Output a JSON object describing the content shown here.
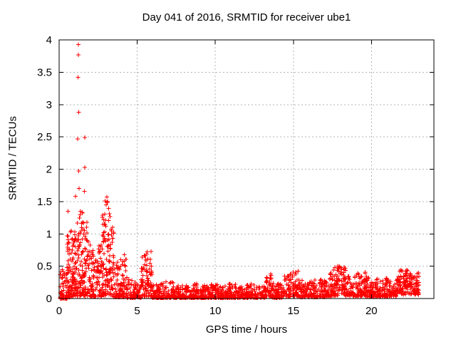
{
  "window": {
    "title": "Day 041 of 2016, SRMTID for receiver ube1"
  },
  "chart_data": {
    "type": "scatter",
    "title": "Day 041 of 2016, SRMTID for receiver ube1",
    "xlabel": "GPS time / hours",
    "ylabel": "SRMTID / TECUs",
    "xlim": [
      0,
      24
    ],
    "ylim": [
      0,
      4
    ],
    "xticks": [
      0,
      5,
      10,
      15,
      20
    ],
    "yticks": [
      0,
      0.5,
      1,
      1.5,
      2,
      2.5,
      3,
      3.5,
      4
    ],
    "grid": true,
    "legend_position": "none",
    "marker": {
      "shape": "plus",
      "size": 7,
      "color": "#ff0000"
    },
    "colors": {
      "marker": "#ff0000",
      "axis": "#000000",
      "grid": "#b4b4b4",
      "background": "#ffffff",
      "text": "#000000"
    },
    "series": [
      {
        "name": "SRMTID",
        "outlier_points": [
          [
            1.23,
            3.93
          ],
          [
            1.23,
            3.77
          ],
          [
            1.2,
            3.42
          ],
          [
            1.25,
            2.88
          ],
          [
            1.19,
            2.47
          ],
          [
            1.64,
            2.49
          ],
          [
            1.64,
            2.03
          ],
          [
            1.26,
            1.97
          ],
          [
            1.27,
            1.7
          ],
          [
            1.61,
            1.66
          ],
          [
            1.05,
            1.58
          ],
          [
            3.05,
            1.57
          ],
          [
            3.1,
            1.5
          ],
          [
            0.57,
            1.35
          ],
          [
            1.38,
            1.35
          ],
          [
            3.0,
            1.45
          ]
        ],
        "cloud_segments": [
          {
            "x0": 0.05,
            "x1": 0.5,
            "n": 60,
            "vmin": 0.0,
            "vmax": 0.45,
            "bias": 2.4
          },
          {
            "x0": 0.5,
            "x1": 0.9,
            "n": 85,
            "vmin": 0.02,
            "vmax": 1.33,
            "bias": 1.8
          },
          {
            "x0": 0.9,
            "x1": 1.9,
            "n": 170,
            "vmin": 0.04,
            "vmax": 1.36,
            "bias": 1.7
          },
          {
            "x0": 1.9,
            "x1": 2.75,
            "n": 110,
            "vmin": 0.03,
            "vmax": 0.95,
            "bias": 1.8
          },
          {
            "x0": 2.75,
            "x1": 3.5,
            "n": 130,
            "vmin": 0.05,
            "vmax": 1.55,
            "bias": 1.7
          },
          {
            "x0": 3.5,
            "x1": 4.3,
            "n": 90,
            "vmin": 0.02,
            "vmax": 0.7,
            "bias": 2.0
          },
          {
            "x0": 4.3,
            "x1": 5.25,
            "n": 80,
            "vmin": 0.01,
            "vmax": 0.33,
            "bias": 1.8
          },
          {
            "x0": 5.25,
            "x1": 5.95,
            "n": 90,
            "vmin": 0.03,
            "vmax": 0.78,
            "bias": 1.6
          },
          {
            "x0": 5.95,
            "x1": 9.0,
            "n": 280,
            "vmin": 0.01,
            "vmax": 0.27,
            "bias": 2.2
          },
          {
            "x0": 9.0,
            "x1": 13.2,
            "n": 380,
            "vmin": 0.01,
            "vmax": 0.24,
            "bias": 2.0
          },
          {
            "x0": 13.2,
            "x1": 13.65,
            "n": 50,
            "vmin": 0.03,
            "vmax": 0.42,
            "bias": 1.6
          },
          {
            "x0": 13.65,
            "x1": 14.4,
            "n": 70,
            "vmin": 0.01,
            "vmax": 0.25,
            "bias": 2.0
          },
          {
            "x0": 14.4,
            "x1": 15.4,
            "n": 100,
            "vmin": 0.03,
            "vmax": 0.44,
            "bias": 1.7
          },
          {
            "x0": 15.4,
            "x1": 17.3,
            "n": 175,
            "vmin": 0.02,
            "vmax": 0.31,
            "bias": 1.9
          },
          {
            "x0": 17.3,
            "x1": 18.35,
            "n": 115,
            "vmin": 0.04,
            "vmax": 0.52,
            "bias": 1.5
          },
          {
            "x0": 18.35,
            "x1": 19.85,
            "n": 145,
            "vmin": 0.03,
            "vmax": 0.43,
            "bias": 1.7
          },
          {
            "x0": 19.85,
            "x1": 21.6,
            "n": 165,
            "vmin": 0.03,
            "vmax": 0.33,
            "bias": 1.8
          },
          {
            "x0": 21.6,
            "x1": 23.05,
            "n": 165,
            "vmin": 0.06,
            "vmax": 0.46,
            "bias": 1.4
          }
        ]
      }
    ]
  }
}
